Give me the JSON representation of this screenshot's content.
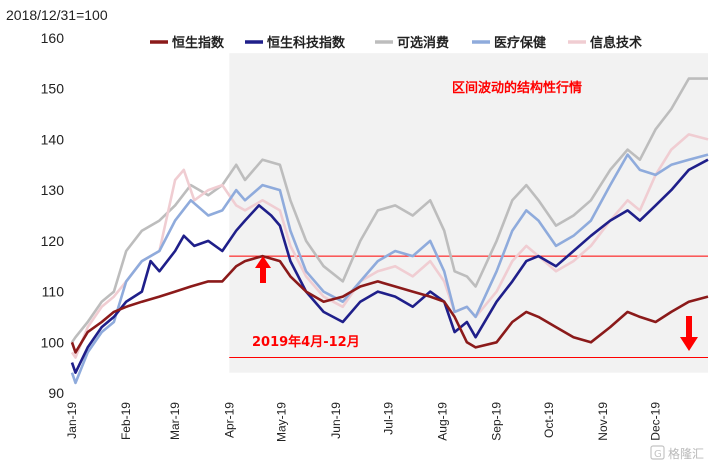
{
  "chart_data": {
    "type": "line",
    "title": "",
    "base_label": "2018/12/31=100",
    "xlabel": "",
    "ylabel": "",
    "ylim": [
      90,
      160
    ],
    "yticks": [
      90,
      100,
      110,
      120,
      130,
      140,
      150,
      160
    ],
    "xlim": [
      "2019-01-01",
      "2019-12-31"
    ],
    "x_ticks": [
      {
        "label": "Jan-19",
        "date": "2019-01-01"
      },
      {
        "label": "Feb-19",
        "date": "2019-02-01"
      },
      {
        "label": "Mar-19",
        "date": "2019-03-01"
      },
      {
        "label": "Apr-19",
        "date": "2019-04-01"
      },
      {
        "label": "May-19",
        "date": "2019-05-01"
      },
      {
        "label": "Jun-19",
        "date": "2019-06-01"
      },
      {
        "label": "Jul-19",
        "date": "2019-07-01"
      },
      {
        "label": "Aug-19",
        "date": "2019-08-01"
      },
      {
        "label": "Sep-19",
        "date": "2019-09-01"
      },
      {
        "label": "Oct-19",
        "date": "2019-10-01"
      },
      {
        "label": "Nov-19",
        "date": "2019-11-01"
      },
      {
        "label": "Dec-19",
        "date": "2019-12-01"
      }
    ],
    "legend_position": "top",
    "grid": false,
    "series": [
      {
        "name": "恒生指数",
        "color": "#8b1a1a",
        "points": [
          [
            "2019-01-01",
            100
          ],
          [
            "2019-01-03",
            98
          ],
          [
            "2019-01-10",
            102
          ],
          [
            "2019-01-18",
            104
          ],
          [
            "2019-01-25",
            106
          ],
          [
            "2019-02-01",
            107
          ],
          [
            "2019-02-10",
            108
          ],
          [
            "2019-02-20",
            109
          ],
          [
            "2019-03-01",
            110
          ],
          [
            "2019-03-10",
            111
          ],
          [
            "2019-03-20",
            112
          ],
          [
            "2019-03-28",
            112
          ],
          [
            "2019-04-05",
            115
          ],
          [
            "2019-04-10",
            116
          ],
          [
            "2019-04-20",
            117
          ],
          [
            "2019-04-30",
            116
          ],
          [
            "2019-05-06",
            113
          ],
          [
            "2019-05-15",
            110
          ],
          [
            "2019-05-25",
            108
          ],
          [
            "2019-06-05",
            109
          ],
          [
            "2019-06-15",
            111
          ],
          [
            "2019-06-25",
            112
          ],
          [
            "2019-07-05",
            111
          ],
          [
            "2019-07-15",
            110
          ],
          [
            "2019-07-25",
            109
          ],
          [
            "2019-08-02",
            108
          ],
          [
            "2019-08-08",
            105
          ],
          [
            "2019-08-15",
            100
          ],
          [
            "2019-08-20",
            99
          ],
          [
            "2019-09-01",
            100
          ],
          [
            "2019-09-10",
            104
          ],
          [
            "2019-09-18",
            106
          ],
          [
            "2019-09-25",
            105
          ],
          [
            "2019-10-05",
            103
          ],
          [
            "2019-10-15",
            101
          ],
          [
            "2019-10-25",
            100
          ],
          [
            "2019-11-05",
            103
          ],
          [
            "2019-11-15",
            106
          ],
          [
            "2019-11-22",
            105
          ],
          [
            "2019-12-01",
            104
          ],
          [
            "2019-12-10",
            106
          ],
          [
            "2019-12-20",
            108
          ],
          [
            "2019-12-31",
            109
          ]
        ]
      },
      {
        "name": "恒生科技指数",
        "color": "#1f1f8a",
        "points": [
          [
            "2019-01-01",
            96
          ],
          [
            "2019-01-03",
            94
          ],
          [
            "2019-01-10",
            99
          ],
          [
            "2019-01-18",
            103
          ],
          [
            "2019-01-25",
            105
          ],
          [
            "2019-02-01",
            108
          ],
          [
            "2019-02-10",
            110
          ],
          [
            "2019-02-15",
            116
          ],
          [
            "2019-02-20",
            114
          ],
          [
            "2019-03-01",
            118
          ],
          [
            "2019-03-06",
            121
          ],
          [
            "2019-03-12",
            119
          ],
          [
            "2019-03-20",
            120
          ],
          [
            "2019-03-28",
            118
          ],
          [
            "2019-04-05",
            122
          ],
          [
            "2019-04-10",
            124
          ],
          [
            "2019-04-18",
            127
          ],
          [
            "2019-04-25",
            125
          ],
          [
            "2019-04-30",
            123
          ],
          [
            "2019-05-06",
            116
          ],
          [
            "2019-05-15",
            110
          ],
          [
            "2019-05-25",
            106
          ],
          [
            "2019-06-05",
            104
          ],
          [
            "2019-06-15",
            108
          ],
          [
            "2019-06-25",
            110
          ],
          [
            "2019-07-05",
            109
          ],
          [
            "2019-07-15",
            107
          ],
          [
            "2019-07-25",
            110
          ],
          [
            "2019-08-02",
            108
          ],
          [
            "2019-08-08",
            102
          ],
          [
            "2019-08-15",
            104
          ],
          [
            "2019-08-20",
            101
          ],
          [
            "2019-09-01",
            108
          ],
          [
            "2019-09-10",
            112
          ],
          [
            "2019-09-18",
            116
          ],
          [
            "2019-09-25",
            117
          ],
          [
            "2019-10-05",
            115
          ],
          [
            "2019-10-15",
            118
          ],
          [
            "2019-10-25",
            121
          ],
          [
            "2019-11-05",
            124
          ],
          [
            "2019-11-15",
            126
          ],
          [
            "2019-11-22",
            124
          ],
          [
            "2019-12-01",
            127
          ],
          [
            "2019-12-10",
            130
          ],
          [
            "2019-12-20",
            134
          ],
          [
            "2019-12-31",
            136
          ]
        ]
      },
      {
        "name": "可选消费",
        "color": "#bdbdbd",
        "points": [
          [
            "2019-01-01",
            100
          ],
          [
            "2019-01-03",
            101
          ],
          [
            "2019-01-10",
            104
          ],
          [
            "2019-01-18",
            108
          ],
          [
            "2019-01-25",
            110
          ],
          [
            "2019-02-01",
            118
          ],
          [
            "2019-02-10",
            122
          ],
          [
            "2019-02-20",
            124
          ],
          [
            "2019-03-01",
            127
          ],
          [
            "2019-03-10",
            131
          ],
          [
            "2019-03-20",
            129
          ],
          [
            "2019-03-28",
            131
          ],
          [
            "2019-04-05",
            135
          ],
          [
            "2019-04-10",
            132
          ],
          [
            "2019-04-20",
            136
          ],
          [
            "2019-04-30",
            135
          ],
          [
            "2019-05-06",
            128
          ],
          [
            "2019-05-15",
            120
          ],
          [
            "2019-05-25",
            115
          ],
          [
            "2019-06-05",
            112
          ],
          [
            "2019-06-15",
            120
          ],
          [
            "2019-06-25",
            126
          ],
          [
            "2019-07-05",
            127
          ],
          [
            "2019-07-15",
            125
          ],
          [
            "2019-07-25",
            128
          ],
          [
            "2019-08-02",
            122
          ],
          [
            "2019-08-08",
            114
          ],
          [
            "2019-08-15",
            113
          ],
          [
            "2019-08-20",
            111
          ],
          [
            "2019-09-01",
            120
          ],
          [
            "2019-09-10",
            128
          ],
          [
            "2019-09-18",
            131
          ],
          [
            "2019-09-25",
            128
          ],
          [
            "2019-10-05",
            123
          ],
          [
            "2019-10-15",
            125
          ],
          [
            "2019-10-25",
            128
          ],
          [
            "2019-11-05",
            134
          ],
          [
            "2019-11-15",
            138
          ],
          [
            "2019-11-22",
            136
          ],
          [
            "2019-12-01",
            142
          ],
          [
            "2019-12-10",
            146
          ],
          [
            "2019-12-20",
            152
          ],
          [
            "2019-12-31",
            152
          ]
        ]
      },
      {
        "name": "医疗保健",
        "color": "#8fabdc",
        "points": [
          [
            "2019-01-01",
            94
          ],
          [
            "2019-01-03",
            92
          ],
          [
            "2019-01-10",
            98
          ],
          [
            "2019-01-18",
            102
          ],
          [
            "2019-01-25",
            104
          ],
          [
            "2019-02-01",
            112
          ],
          [
            "2019-02-10",
            116
          ],
          [
            "2019-02-20",
            118
          ],
          [
            "2019-03-01",
            124
          ],
          [
            "2019-03-10",
            128
          ],
          [
            "2019-03-20",
            125
          ],
          [
            "2019-03-28",
            126
          ],
          [
            "2019-04-05",
            130
          ],
          [
            "2019-04-10",
            128
          ],
          [
            "2019-04-20",
            131
          ],
          [
            "2019-04-30",
            130
          ],
          [
            "2019-05-06",
            122
          ],
          [
            "2019-05-15",
            114
          ],
          [
            "2019-05-25",
            110
          ],
          [
            "2019-06-05",
            108
          ],
          [
            "2019-06-15",
            112
          ],
          [
            "2019-06-25",
            116
          ],
          [
            "2019-07-05",
            118
          ],
          [
            "2019-07-15",
            117
          ],
          [
            "2019-07-25",
            120
          ],
          [
            "2019-08-02",
            114
          ],
          [
            "2019-08-08",
            106
          ],
          [
            "2019-08-15",
            107
          ],
          [
            "2019-08-20",
            105
          ],
          [
            "2019-09-01",
            114
          ],
          [
            "2019-09-10",
            122
          ],
          [
            "2019-09-18",
            126
          ],
          [
            "2019-09-25",
            124
          ],
          [
            "2019-10-05",
            119
          ],
          [
            "2019-10-15",
            121
          ],
          [
            "2019-10-25",
            124
          ],
          [
            "2019-11-05",
            131
          ],
          [
            "2019-11-15",
            137
          ],
          [
            "2019-11-22",
            134
          ],
          [
            "2019-12-01",
            133
          ],
          [
            "2019-12-10",
            135
          ],
          [
            "2019-12-20",
            136
          ],
          [
            "2019-12-31",
            137
          ]
        ]
      },
      {
        "name": "信息技术",
        "color": "#f0cdd2",
        "points": [
          [
            "2019-01-01",
            98
          ],
          [
            "2019-01-03",
            97
          ],
          [
            "2019-01-10",
            103
          ],
          [
            "2019-01-18",
            107
          ],
          [
            "2019-01-25",
            109
          ],
          [
            "2019-02-01",
            112
          ],
          [
            "2019-02-10",
            116
          ],
          [
            "2019-02-20",
            118
          ],
          [
            "2019-03-01",
            132
          ],
          [
            "2019-03-06",
            134
          ],
          [
            "2019-03-12",
            128
          ],
          [
            "2019-03-20",
            130
          ],
          [
            "2019-03-28",
            131
          ],
          [
            "2019-04-05",
            127
          ],
          [
            "2019-04-10",
            126
          ],
          [
            "2019-04-20",
            128
          ],
          [
            "2019-04-30",
            126
          ],
          [
            "2019-05-06",
            119
          ],
          [
            "2019-05-15",
            113
          ],
          [
            "2019-05-25",
            109
          ],
          [
            "2019-06-05",
            107
          ],
          [
            "2019-06-15",
            112
          ],
          [
            "2019-06-25",
            114
          ],
          [
            "2019-07-05",
            115
          ],
          [
            "2019-07-15",
            113
          ],
          [
            "2019-07-25",
            116
          ],
          [
            "2019-08-02",
            112
          ],
          [
            "2019-08-08",
            106
          ],
          [
            "2019-08-15",
            107
          ],
          [
            "2019-08-20",
            105
          ],
          [
            "2019-09-01",
            110
          ],
          [
            "2019-09-10",
            116
          ],
          [
            "2019-09-18",
            119
          ],
          [
            "2019-09-25",
            117
          ],
          [
            "2019-10-05",
            114
          ],
          [
            "2019-10-15",
            116
          ],
          [
            "2019-10-25",
            119
          ],
          [
            "2019-11-05",
            124
          ],
          [
            "2019-11-15",
            128
          ],
          [
            "2019-11-22",
            126
          ],
          [
            "2019-12-01",
            133
          ],
          [
            "2019-12-10",
            138
          ],
          [
            "2019-12-20",
            141
          ],
          [
            "2019-12-31",
            140
          ]
        ]
      }
    ],
    "range_band": {
      "y_low": 97,
      "y_high": 117,
      "x_start": "2019-04-01",
      "x_end": "2019-12-31"
    },
    "shaded_period": {
      "x_start": "2019-04-01",
      "x_end": "2019-12-31",
      "color": "#f2f2f2"
    },
    "annotations": [
      {
        "id": "title",
        "text": "区间波动的结构性行情",
        "color": "#ff0000"
      },
      {
        "id": "period",
        "text": "2019年4月-12月",
        "color": "#ff0000"
      }
    ],
    "arrows": [
      {
        "direction": "up",
        "color": "#ff0000"
      },
      {
        "direction": "down",
        "color": "#ff0000"
      }
    ],
    "watermark": "格隆汇"
  }
}
